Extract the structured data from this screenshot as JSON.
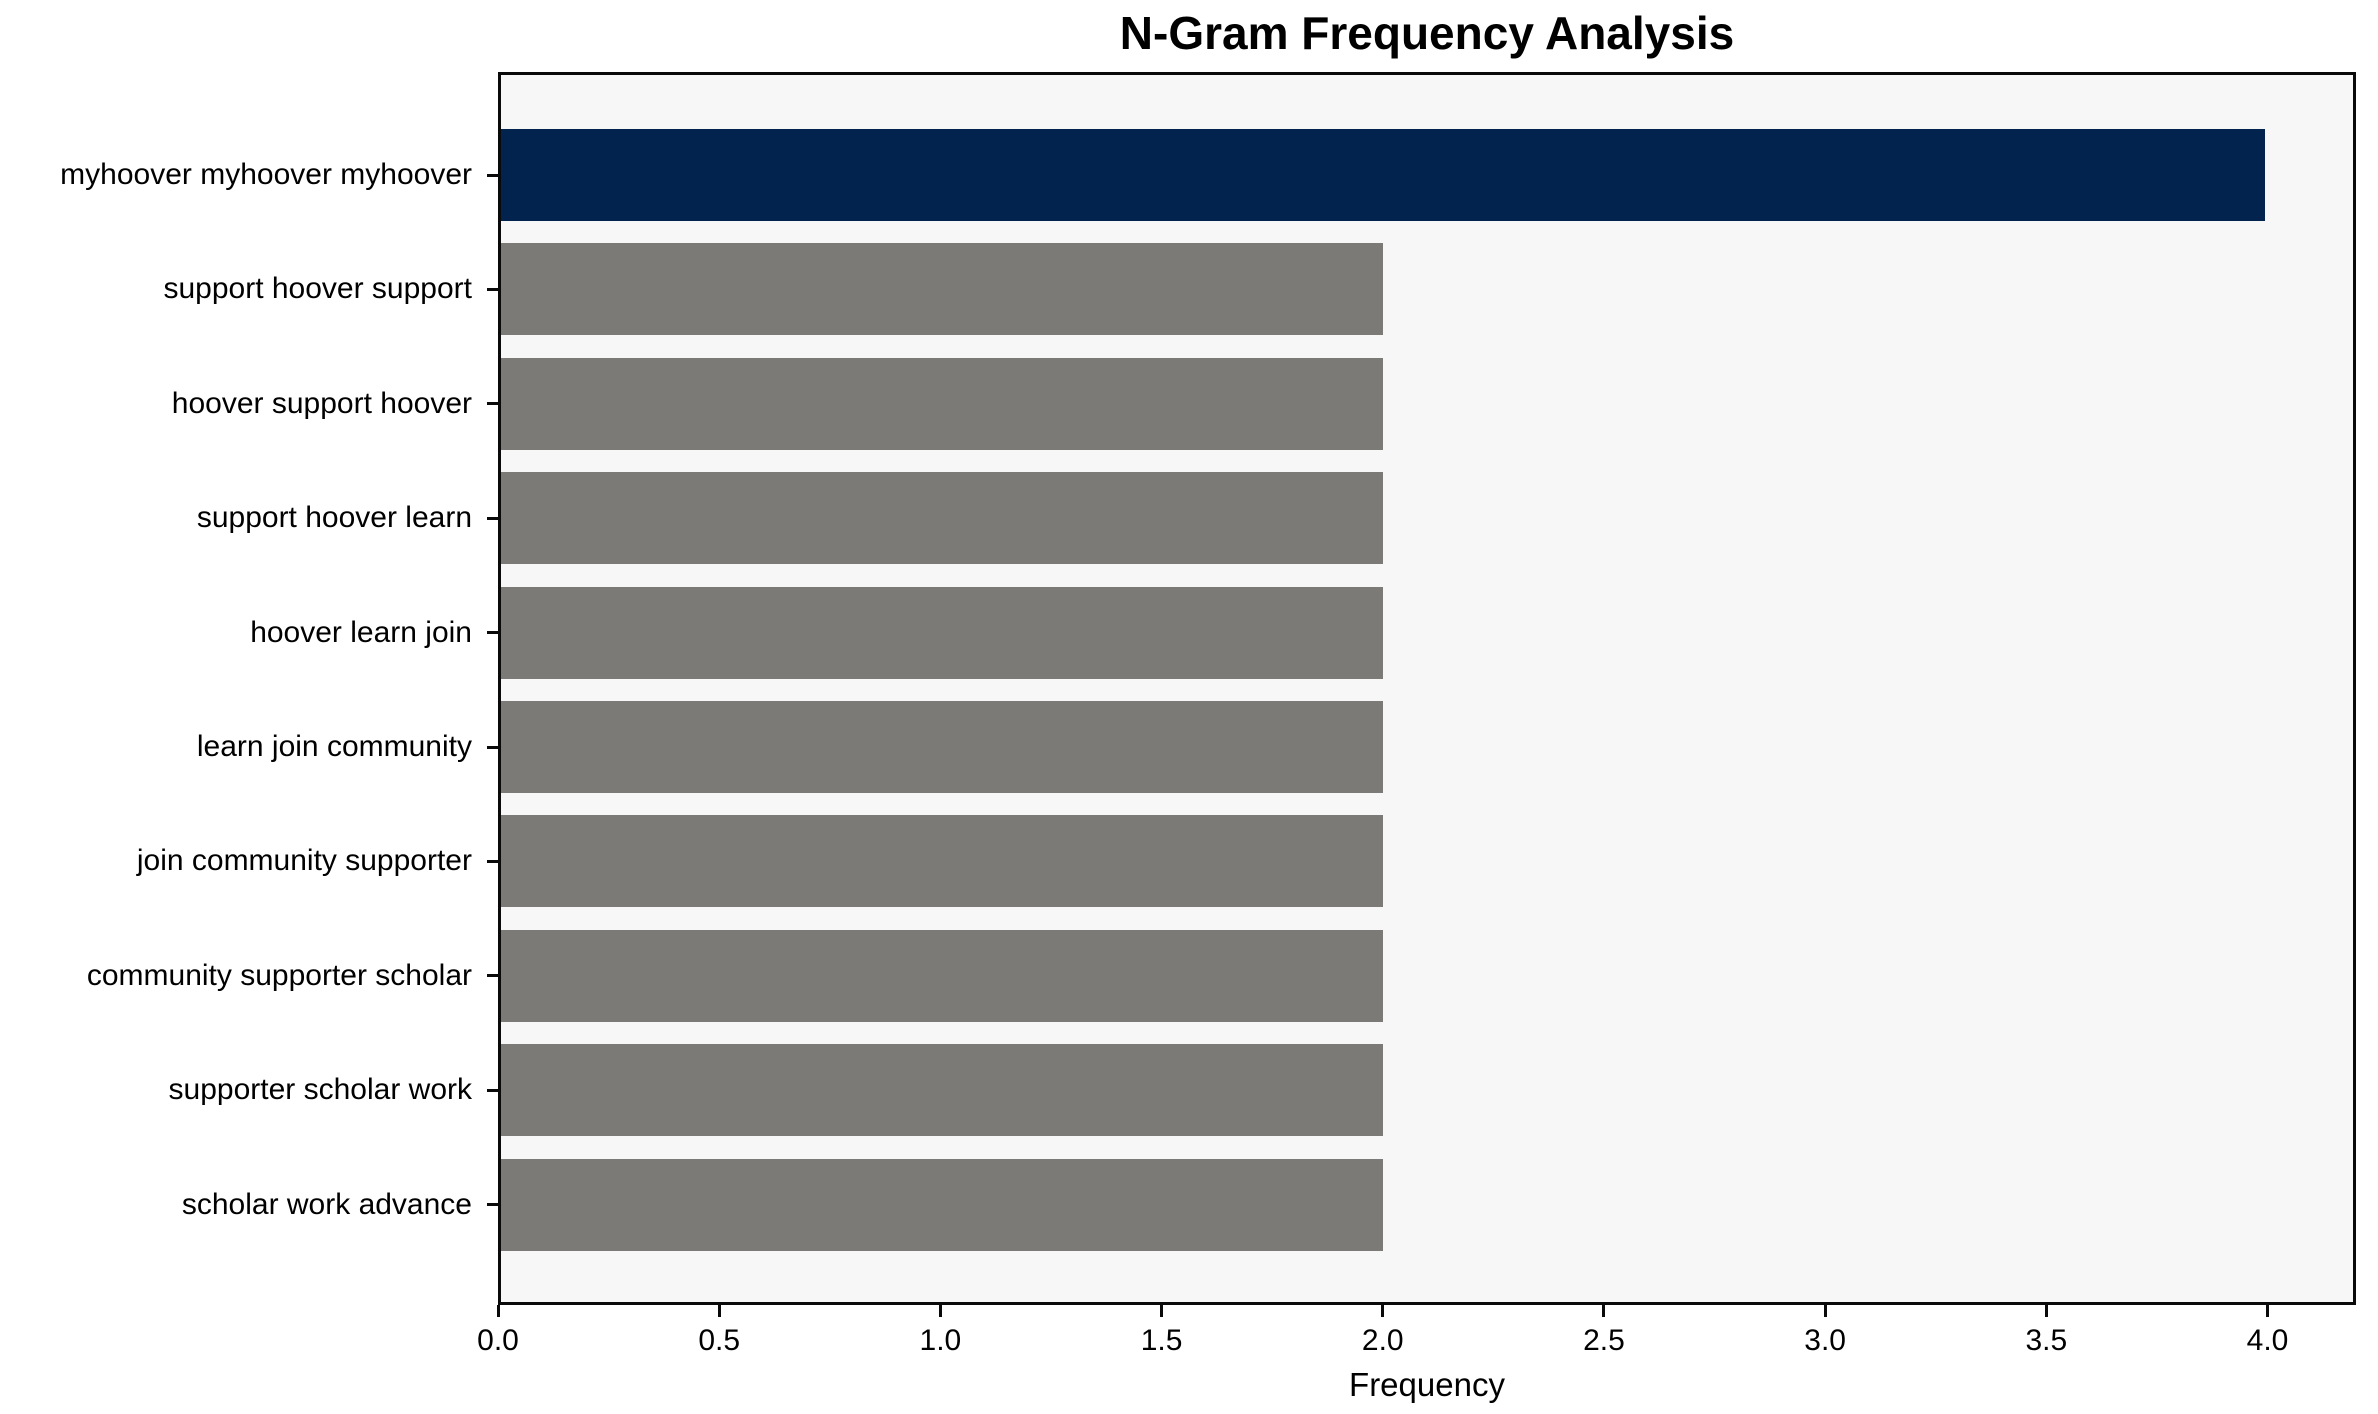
{
  "chart_data": {
    "type": "bar",
    "orientation": "horizontal",
    "title": "N-Gram Frequency Analysis",
    "xlabel": "Frequency",
    "ylabel": "",
    "categories": [
      "myhoover myhoover myhoover",
      "support hoover support",
      "hoover support hoover",
      "support hoover learn",
      "hoover learn join",
      "learn join community",
      "join community supporter",
      "community supporter scholar",
      "supporter scholar work",
      "scholar work advance"
    ],
    "values": [
      4,
      2,
      2,
      2,
      2,
      2,
      2,
      2,
      2,
      2
    ],
    "bar_colors": [
      "#01234e",
      "#7b7a76",
      "#7b7a76",
      "#7b7a76",
      "#7b7a76",
      "#7b7a76",
      "#7b7a76",
      "#7b7a76",
      "#7b7a76",
      "#7b7a76"
    ],
    "xlim": [
      0,
      4.2
    ],
    "xticks": [
      0,
      0.5,
      1,
      1.5,
      2,
      2.5,
      3,
      3.5,
      4
    ],
    "xtick_labels": [
      "0.0",
      "0.5",
      "1.0",
      "1.5",
      "2.0",
      "2.5",
      "3.0",
      "3.5",
      "4.0"
    ],
    "grid": false,
    "legend": null,
    "plot_background": "#f7f7f7",
    "figure_background": "#ffffff",
    "axis_color": "#0a0a0a",
    "highlight_color": "#01234e",
    "default_bar_color": "#7b7a76"
  }
}
